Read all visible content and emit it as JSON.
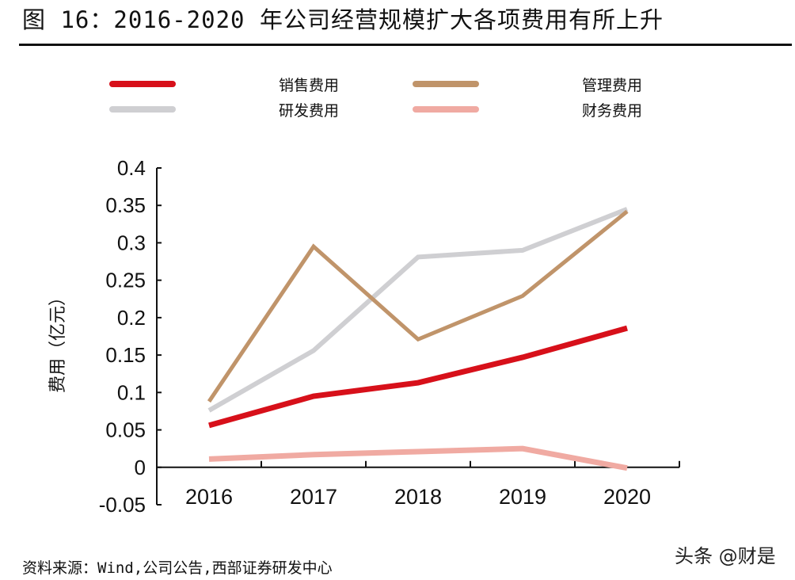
{
  "title": "图 16：2016-2020 年公司经营规模扩大各项费用有所上升",
  "source": "资料来源：Wind,公司公告,西部证券研发中心",
  "watermark": "头条 @财是",
  "chart_data": {
    "type": "line",
    "title": "图 16：2016-2020 年公司经营规模扩大各项费用有所上升",
    "xlabel": "",
    "ylabel": "费用（亿元）",
    "categories": [
      "2016",
      "2017",
      "2018",
      "2019",
      "2020"
    ],
    "ylim": [
      -0.05,
      0.4
    ],
    "yticks": [
      -0.05,
      0,
      0.05,
      0.1,
      0.15,
      0.2,
      0.25,
      0.3,
      0.35,
      0.4
    ],
    "ytick_labels": [
      "-0.05",
      "0",
      "0.05",
      "0.1",
      "0.15",
      "0.2",
      "0.25",
      "0.3",
      "0.35",
      "0.4"
    ],
    "grid": false,
    "legend_position": "top",
    "series": [
      {
        "name": "销售费用",
        "color": "#d7101a",
        "values": [
          0.056,
          0.095,
          0.113,
          0.147,
          0.186
        ]
      },
      {
        "name": "管理费用",
        "color": "#c0946a",
        "values": [
          0.088,
          0.295,
          0.171,
          0.229,
          0.342
        ]
      },
      {
        "name": "研发费用",
        "color": "#cfcfd2",
        "values": [
          0.076,
          0.156,
          0.281,
          0.29,
          0.345
        ]
      },
      {
        "name": "财务费用",
        "color": "#f0aaa2",
        "values": [
          0.011,
          0.017,
          0.021,
          0.025,
          -0.001
        ]
      }
    ]
  }
}
